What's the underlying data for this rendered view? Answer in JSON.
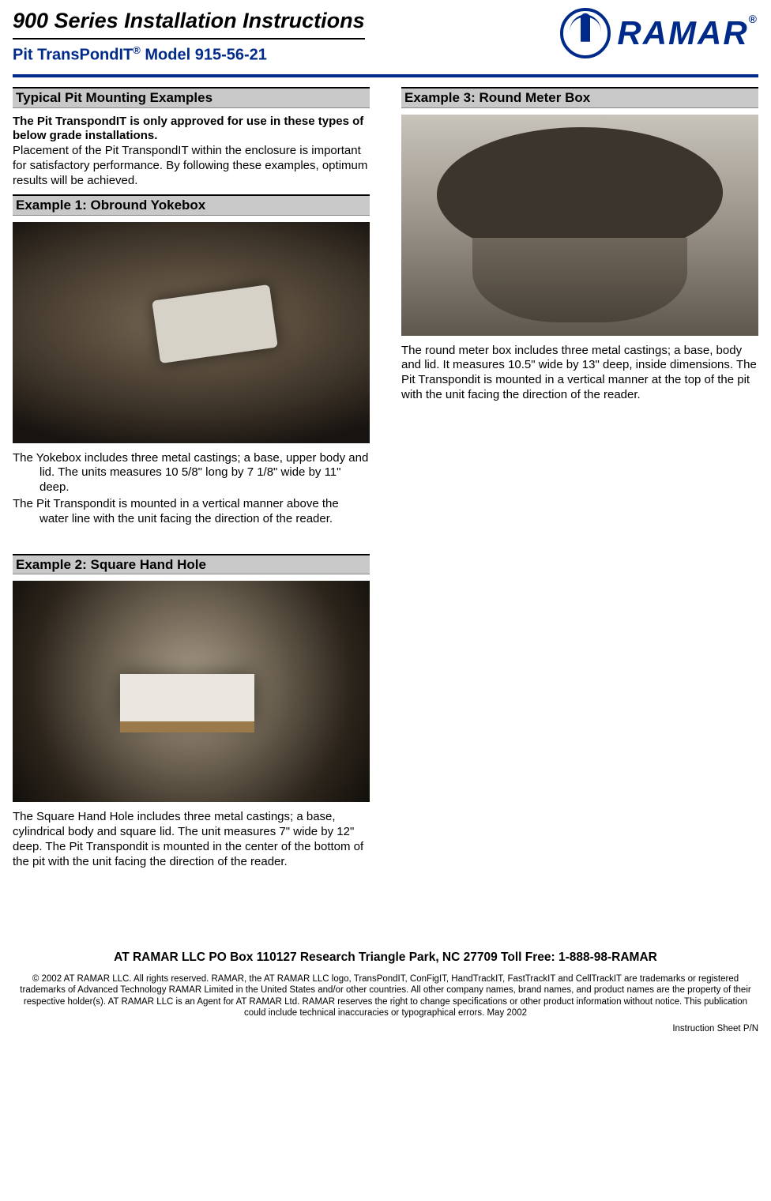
{
  "header": {
    "title": "900 Series Installation Instructions",
    "subtitle_prefix": "Pit TransPondIT",
    "subtitle_suffix": " Model 915-56-21",
    "logo_text": "RAMAR",
    "accent_color": "#002a8a"
  },
  "left_col": {
    "main_heading": "Typical Pit Mounting Examples",
    "intro_bold": "The Pit TranspondIT is only approved for use in these types of below grade installations.",
    "intro_body": "Placement of the Pit TranspondIT within the enclosure is important for satisfactory performance.  By following these examples, optimum results will be achieved.",
    "ex1": {
      "heading": "Example 1: Obround Yokebox",
      "p1": "The Yokebox includes three metal castings; a base, upper body and lid. The units measures 10 5/8\" long by 7 1/8\" wide by 11\" deep.",
      "p2": "The Pit Transpondit is mounted in a vertical manner above the water line with the unit facing the direction of the reader."
    },
    "ex2": {
      "heading": "Example 2: Square Hand Hole",
      "body": "The Square Hand Hole includes three metal castings; a base, cylindrical body and square lid. The unit measures 7\" wide by 12\" deep. The Pit Transpondit is mounted in the center of the bottom of the pit with the unit facing the direction of the reader."
    }
  },
  "right_col": {
    "ex3": {
      "heading": "Example 3: Round Meter Box",
      "body": "The round meter box includes three metal castings; a base, body and lid. It measures 10.5\"  wide by 13\" deep, inside dimensions. The Pit Transpondit is mounted in a vertical manner at the top of the pit with the unit facing the direction of the reader."
    }
  },
  "footer": {
    "contact": "AT RAMAR LLC   PO Box 110127   Research Triangle Park, NC 27709   Toll Free: 1-888-98-RAMAR",
    "legal": "© 2002 AT RAMAR LLC. All rights reserved. RAMAR, the AT RAMAR LLC logo, TransPondIT, ConFigIT, HandTrackIT, FastTrackIT and CellTrackIT are trademarks or registered trademarks of Advanced Technology RAMAR Limited in the United States and/or other countries.  All other company names, brand names, and product names are the property of their respective holder(s). AT RAMAR LLC is an Agent for AT RAMAR Ltd. RAMAR reserves the right to change specifications or other product information without notice. This publication could include technical inaccuracies or typographical errors. May 2002",
    "pn": "Instruction Sheet P/N"
  }
}
